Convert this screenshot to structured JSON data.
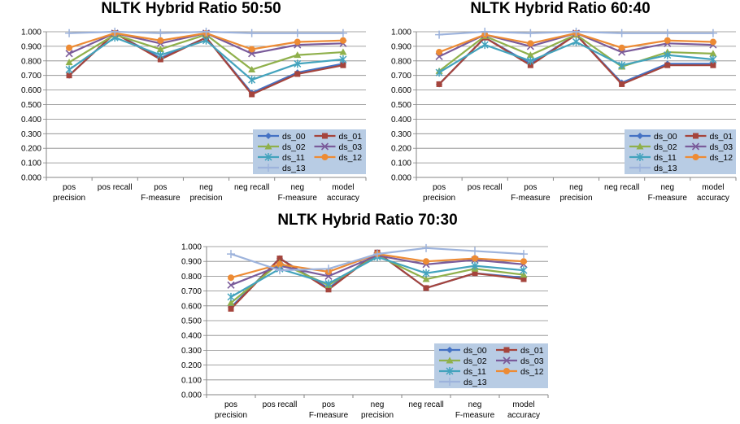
{
  "chart_data": [
    {
      "type": "line",
      "title": "NLTK Hybrid Ratio 50:50",
      "categories": [
        "pos precision",
        "pos recall",
        "pos F-measure",
        "neg precision",
        "neg recall",
        "neg F-measure",
        "model accuracy"
      ],
      "ylim": [
        0,
        1
      ],
      "yticks": [
        "0.000",
        "0.100",
        "0.200",
        "0.300",
        "0.400",
        "0.500",
        "0.600",
        "0.700",
        "0.800",
        "0.900",
        "1.000"
      ],
      "grid": true,
      "legend_position": "bottom-right",
      "series": [
        {
          "name": "ds_00",
          "values": [
            0.7,
            0.99,
            0.82,
            0.96,
            0.58,
            0.72,
            0.78
          ]
        },
        {
          "name": "ds_01",
          "values": [
            0.7,
            0.99,
            0.81,
            0.96,
            0.57,
            0.71,
            0.77
          ]
        },
        {
          "name": "ds_02",
          "values": [
            0.79,
            0.98,
            0.88,
            0.98,
            0.74,
            0.84,
            0.86
          ]
        },
        {
          "name": "ds_03",
          "values": [
            0.85,
            0.99,
            0.92,
            0.99,
            0.85,
            0.91,
            0.92
          ]
        },
        {
          "name": "ds_11",
          "values": [
            0.74,
            0.96,
            0.84,
            0.94,
            0.67,
            0.78,
            0.81
          ]
        },
        {
          "name": "ds_12",
          "values": [
            0.89,
            0.99,
            0.94,
            0.99,
            0.88,
            0.93,
            0.94
          ]
        },
        {
          "name": "ds_13",
          "values": [
            0.99,
            1.0,
            0.99,
            1.0,
            0.99,
            0.99,
            0.99
          ]
        }
      ]
    },
    {
      "type": "line",
      "title": "NLTK Hybrid Ratio 60:40",
      "categories": [
        "pos precision",
        "pos recall",
        "pos F-measure",
        "neg precision",
        "neg recall",
        "neg F-measure",
        "model accuracy"
      ],
      "ylim": [
        0,
        1
      ],
      "yticks": [
        "0.000",
        "0.100",
        "0.200",
        "0.300",
        "0.400",
        "0.500",
        "0.600",
        "0.700",
        "0.800",
        "0.900",
        "1.000"
      ],
      "grid": true,
      "legend_position": "bottom-right",
      "series": [
        {
          "name": "ds_00",
          "values": [
            0.64,
            0.96,
            0.78,
            0.98,
            0.65,
            0.78,
            0.78
          ]
        },
        {
          "name": "ds_01",
          "values": [
            0.64,
            0.96,
            0.77,
            0.98,
            0.64,
            0.77,
            0.77
          ]
        },
        {
          "name": "ds_02",
          "values": [
            0.73,
            0.97,
            0.84,
            0.98,
            0.76,
            0.86,
            0.85
          ]
        },
        {
          "name": "ds_03",
          "values": [
            0.83,
            0.98,
            0.9,
            0.99,
            0.86,
            0.92,
            0.91
          ]
        },
        {
          "name": "ds_11",
          "values": [
            0.72,
            0.91,
            0.8,
            0.93,
            0.77,
            0.84,
            0.81
          ]
        },
        {
          "name": "ds_12",
          "values": [
            0.86,
            0.98,
            0.92,
            0.99,
            0.89,
            0.94,
            0.93
          ]
        },
        {
          "name": "ds_13",
          "values": [
            0.98,
            1.0,
            0.99,
            1.0,
            0.99,
            0.99,
            0.99
          ]
        }
      ]
    },
    {
      "type": "line",
      "title": "NLTK Hybrid Ratio 70:30",
      "categories": [
        "pos precision",
        "pos recall",
        "pos F-measure",
        "neg precision",
        "neg recall",
        "neg F-measure",
        "model accuracy"
      ],
      "ylim": [
        0,
        1
      ],
      "yticks": [
        "0.000",
        "0.100",
        "0.200",
        "0.300",
        "0.400",
        "0.500",
        "0.600",
        "0.700",
        "0.800",
        "0.900",
        "1.000"
      ],
      "grid": true,
      "legend_position": "bottom-right",
      "series": [
        {
          "name": "ds_00",
          "values": [
            0.59,
            0.92,
            0.72,
            0.96,
            0.72,
            0.82,
            0.79
          ]
        },
        {
          "name": "ds_01",
          "values": [
            0.58,
            0.92,
            0.71,
            0.96,
            0.72,
            0.82,
            0.78
          ]
        },
        {
          "name": "ds_02",
          "values": [
            0.62,
            0.89,
            0.74,
            0.94,
            0.78,
            0.85,
            0.81
          ]
        },
        {
          "name": "ds_03",
          "values": [
            0.74,
            0.87,
            0.8,
            0.94,
            0.88,
            0.91,
            0.88
          ]
        },
        {
          "name": "ds_11",
          "values": [
            0.66,
            0.85,
            0.75,
            0.93,
            0.82,
            0.87,
            0.84
          ]
        },
        {
          "name": "ds_12",
          "values": [
            0.79,
            0.88,
            0.83,
            0.95,
            0.9,
            0.92,
            0.9
          ]
        },
        {
          "name": "ds_13",
          "values": [
            0.95,
            0.84,
            0.85,
            0.95,
            0.99,
            0.97,
            0.95
          ]
        }
      ]
    }
  ],
  "series_styles": [
    {
      "name": "ds_00",
      "color": "#4472c4",
      "marker": "diamond"
    },
    {
      "name": "ds_01",
      "color": "#a5443c",
      "marker": "square"
    },
    {
      "name": "ds_02",
      "color": "#8fb04b",
      "marker": "triangle"
    },
    {
      "name": "ds_03",
      "color": "#7a5b9a",
      "marker": "x"
    },
    {
      "name": "ds_11",
      "color": "#43a3bd",
      "marker": "star"
    },
    {
      "name": "ds_12",
      "color": "#ed8b34",
      "marker": "circle"
    },
    {
      "name": "ds_13",
      "color": "#9db3dc",
      "marker": "plus"
    }
  ],
  "legend_background": "#b8cce4",
  "grid_color": "#868686"
}
